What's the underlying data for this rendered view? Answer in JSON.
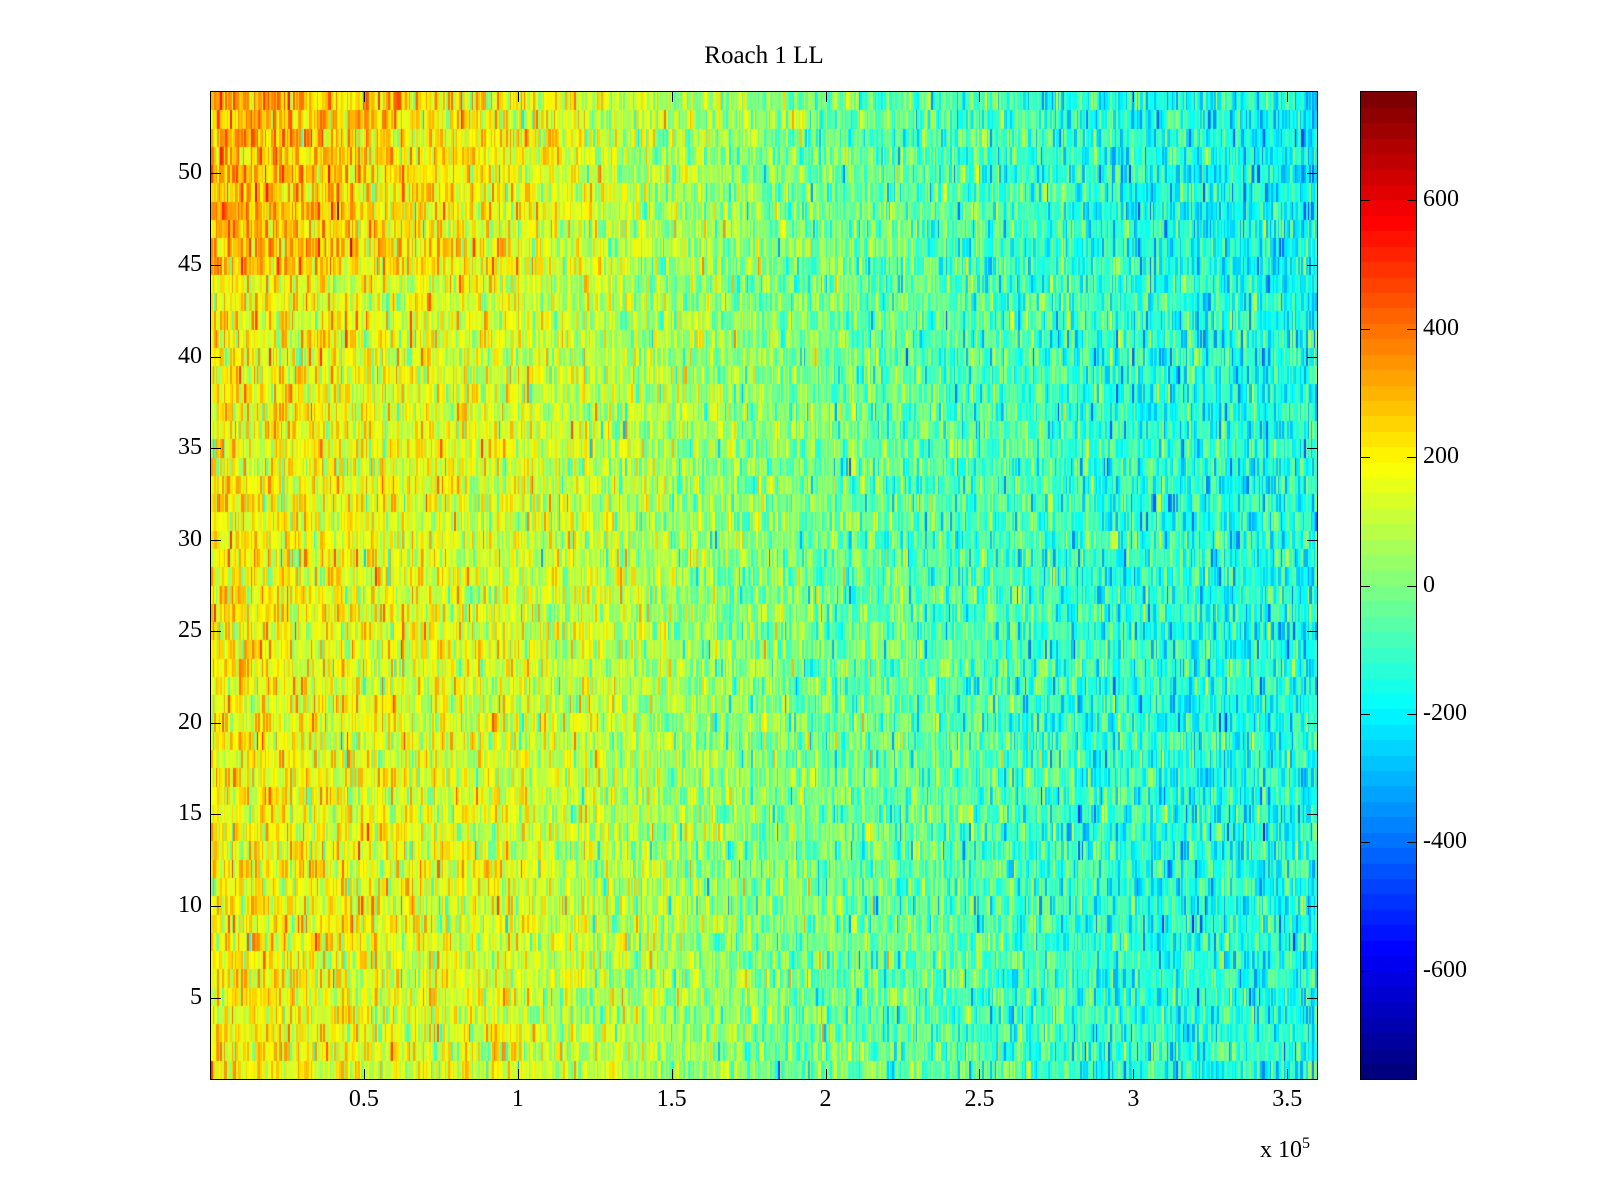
{
  "chart_data": {
    "type": "heatmap",
    "title": "Roach 1 LL",
    "xlabel": "",
    "ylabel": "",
    "x_multiplier": "x 10",
    "x_multiplier_exponent": "5",
    "xlim": [
      0,
      360000
    ],
    "ylim": [
      0.5,
      54.5
    ],
    "rows": 54,
    "x_ticks": [
      50000,
      100000,
      150000,
      200000,
      250000,
      300000,
      350000
    ],
    "x_tick_labels": [
      "0.5",
      "1",
      "1.5",
      "2",
      "2.5",
      "3",
      "3.5"
    ],
    "y_ticks": [
      5,
      10,
      15,
      20,
      25,
      30,
      35,
      40,
      45,
      50
    ],
    "y_tick_labels": [
      "5",
      "10",
      "15",
      "20",
      "25",
      "30",
      "35",
      "40",
      "45",
      "50"
    ],
    "colormap": "jet",
    "clim": [
      -770,
      770
    ],
    "colorbar_ticks": [
      600,
      400,
      200,
      0,
      -200,
      -400,
      -600
    ],
    "colorbar_tick_labels": [
      "600",
      "400",
      "200",
      "0",
      "-200",
      "-400",
      "-600"
    ],
    "trend": {
      "description_of_values": "approximate mean value by x position; noisy per-cell values",
      "x": [
        0,
        100000,
        200000,
        300000,
        360000
      ],
      "mean": [
        200,
        130,
        -20,
        -130,
        -160
      ],
      "rows_45_to_54_left_boost": 120,
      "noise_sd": 110
    }
  }
}
